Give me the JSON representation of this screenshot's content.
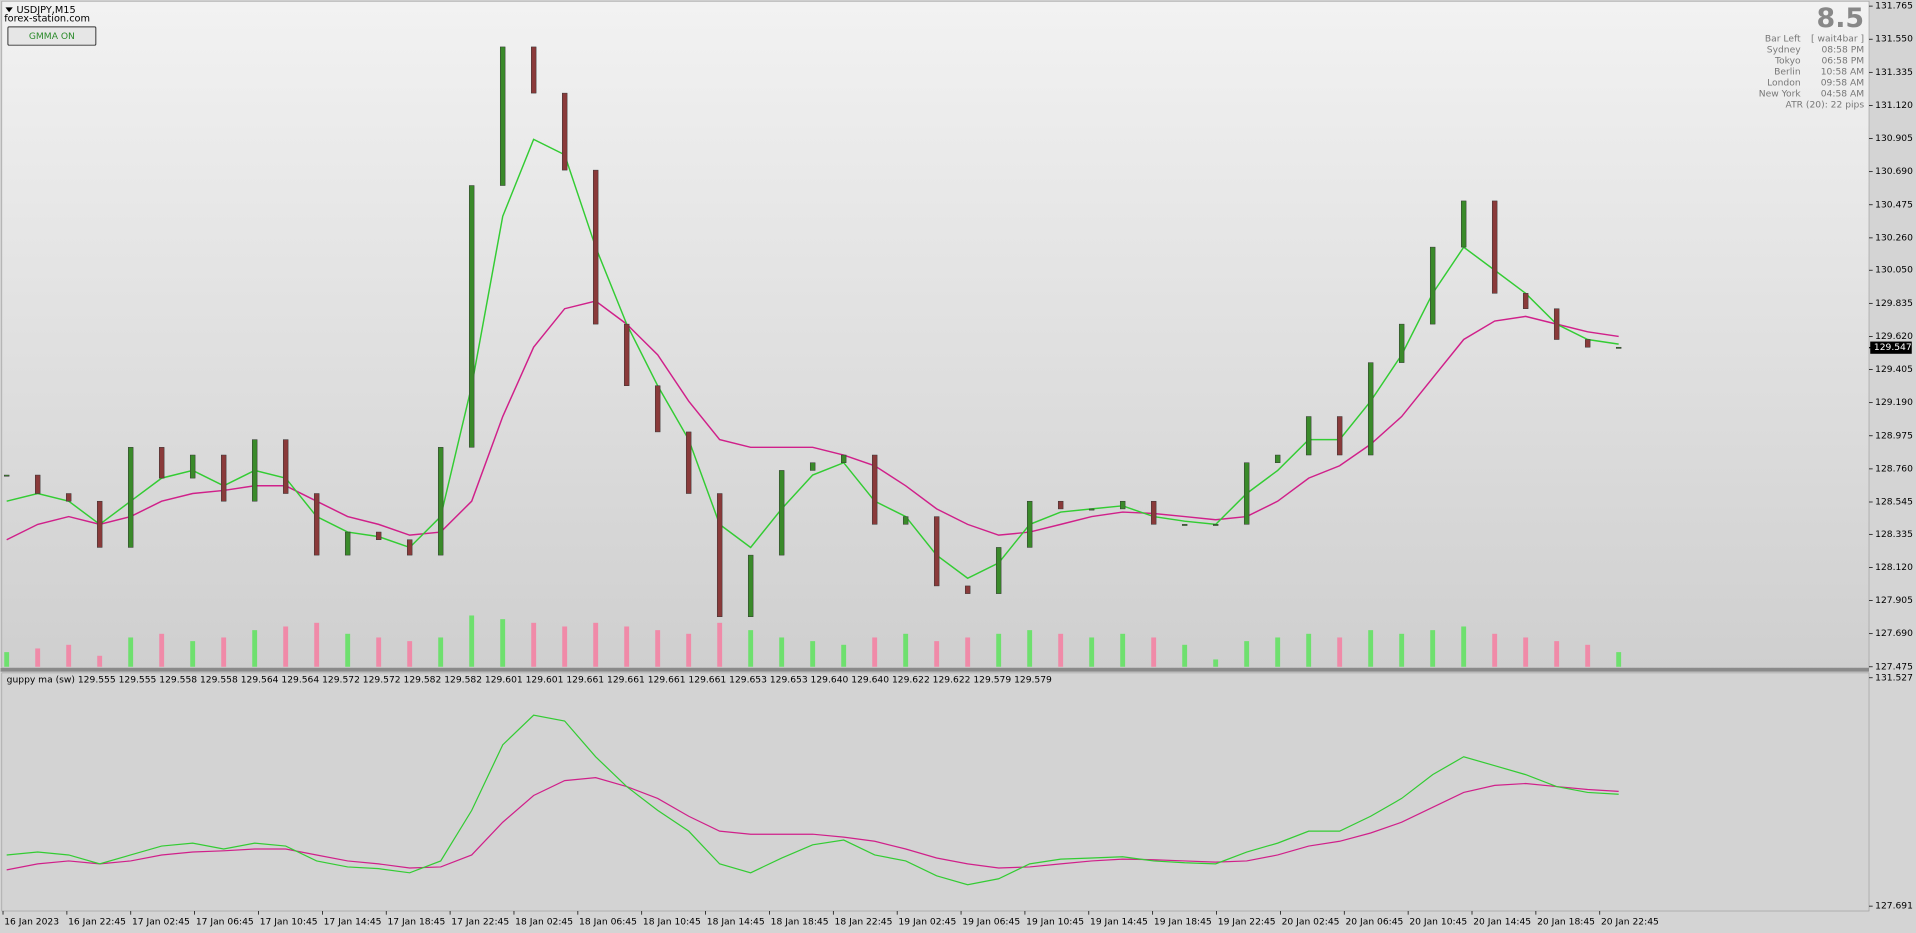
{
  "window": {
    "symbol": "USDJPY,M15",
    "site": "forex-station.com",
    "button": "GMMA ON"
  },
  "info": {
    "big": "8.5",
    "rows": [
      [
        "Bar Left",
        "[ wait4bar ]"
      ],
      [
        "Sydney",
        "08:58 PM"
      ],
      [
        "Tokyo",
        "06:58 PM"
      ],
      [
        "Berlin",
        "10:58 AM"
      ],
      [
        "London",
        "09:58 AM"
      ],
      [
        "New York",
        "04:58 AM"
      ]
    ],
    "atr": "ATR (20): 22 pips"
  },
  "main": {
    "ylim": [
      127.475,
      131.765
    ],
    "yticks": [
      131.765,
      {
        "value": 131.55,
        "label": "131.550"
      },
      131.335,
      {
        "value": 131.12,
        "label": "131.120"
      },
      130.905,
      {
        "value": 130.69,
        "label": "130.690"
      },
      130.475,
      {
        "value": 130.26,
        "label": "130.260"
      },
      {
        "value": 130.05,
        "label": "130.050"
      },
      129.835,
      {
        "value": 129.62,
        "label": "129.620"
      },
      129.405,
      {
        "value": 129.19,
        "label": "129.190"
      },
      128.975,
      {
        "value": 128.76,
        "label": "128.760"
      },
      128.545,
      128.335,
      {
        "value": 128.12,
        "label": "128.120"
      },
      127.905,
      {
        "value": 127.69,
        "label": "127.690"
      },
      127.475
    ],
    "current_price": 129.547,
    "price": [
      128.72,
      128.6,
      128.55,
      128.25,
      128.9,
      128.7,
      128.85,
      128.55,
      128.95,
      128.6,
      128.2,
      128.35,
      128.3,
      128.2,
      128.9,
      130.6,
      131.5,
      131.2,
      130.7,
      129.7,
      129.3,
      129.0,
      128.6,
      127.8,
      128.2,
      128.75,
      128.8,
      128.85,
      128.4,
      128.45,
      128.0,
      127.95,
      128.25,
      128.55,
      128.5,
      128.5,
      128.55,
      128.4,
      128.4,
      128.4,
      128.8,
      128.85,
      129.1,
      128.85,
      129.45,
      129.7,
      130.2,
      130.5,
      129.9,
      129.8,
      129.6,
      129.55,
      129.55
    ],
    "ma_fast": [
      128.55,
      128.6,
      128.55,
      128.4,
      128.55,
      128.7,
      128.75,
      128.65,
      128.75,
      128.7,
      128.45,
      128.35,
      128.32,
      128.25,
      128.45,
      129.3,
      130.4,
      130.9,
      130.8,
      130.2,
      129.7,
      129.3,
      128.95,
      128.4,
      128.25,
      128.5,
      128.72,
      128.8,
      128.55,
      128.45,
      128.2,
      128.05,
      128.15,
      128.4,
      128.48,
      128.5,
      128.52,
      128.45,
      128.42,
      128.4,
      128.6,
      128.75,
      128.95,
      128.95,
      129.2,
      129.5,
      129.9,
      130.2,
      130.05,
      129.9,
      129.7,
      129.6,
      129.57
    ],
    "ma_slow": [
      128.3,
      128.4,
      128.45,
      128.4,
      128.45,
      128.55,
      128.6,
      128.62,
      128.65,
      128.65,
      128.55,
      128.45,
      128.4,
      128.33,
      128.35,
      128.55,
      129.1,
      129.55,
      129.8,
      129.85,
      129.7,
      129.5,
      129.2,
      128.95,
      128.9,
      128.9,
      128.9,
      128.85,
      128.78,
      128.65,
      128.5,
      128.4,
      128.33,
      128.35,
      128.4,
      128.45,
      128.48,
      128.47,
      128.45,
      128.43,
      128.45,
      128.55,
      128.7,
      128.78,
      128.92,
      129.1,
      129.35,
      129.6,
      129.72,
      129.75,
      129.7,
      129.65,
      129.62
    ],
    "volume": [
      20,
      25,
      30,
      15,
      40,
      45,
      35,
      40,
      50,
      55,
      60,
      45,
      40,
      35,
      40,
      70,
      65,
      60,
      55,
      60,
      55,
      50,
      45,
      60,
      50,
      40,
      35,
      30,
      40,
      45,
      35,
      40,
      45,
      50,
      45,
      40,
      45,
      40,
      30,
      10,
      35,
      40,
      45,
      40,
      50,
      45,
      50,
      55,
      45,
      40,
      35,
      30,
      20
    ]
  },
  "indicator": {
    "label": "guppy ma (sw) 129.555 129.555 129.558 129.558 129.564 129.564 129.572 129.572 129.582 129.582 129.601 129.601 129.661 129.661 129.661 129.661 129.653 129.653 129.640 129.640 129.622 129.622 129.579 129.579",
    "ylim": [
      127.691,
      131.527
    ],
    "yticks": [
      131.527,
      127.691
    ]
  },
  "time_labels": [
    "16 Jan 2023",
    "16 Jan 22:45",
    "17 Jan 02:45",
    "17 Jan 06:45",
    "17 Jan 10:45",
    "17 Jan 14:45",
    "17 Jan 18:45",
    "17 Jan 22:45",
    "18 Jan 02:45",
    "18 Jan 06:45",
    "18 Jan 10:45",
    "18 Jan 14:45",
    "18 Jan 18:45",
    "18 Jan 22:45",
    "19 Jan 02:45",
    "19 Jan 06:45",
    "19 Jan 10:45",
    "19 Jan 14:45",
    "19 Jan 18:45",
    "19 Jan 22:45",
    "20 Jan 02:45",
    "20 Jan 06:45",
    "20 Jan 10:45",
    "20 Jan 14:45",
    "20 Jan 18:45",
    "20 Jan 22:45"
  ]
}
